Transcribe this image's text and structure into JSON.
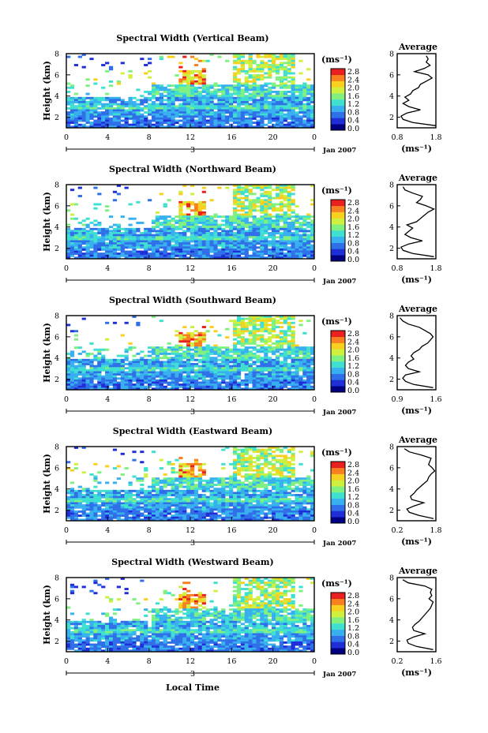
{
  "figure": {
    "colorbar_ticks": [
      "2.8",
      "2.4",
      "2.0",
      "1.6",
      "1.2",
      "0.8",
      "0.4",
      "0.0"
    ],
    "colorbar_unit": "(ms⁻¹)",
    "date_label": "Jan 2007",
    "day_label": "3",
    "xlabel_bottom": "Local Time",
    "profile_title": "Average",
    "profile_unit": "(ms⁻¹)",
    "colormap": [
      "#000080",
      "#1f2fd8",
      "#2f6fe8",
      "#38b0f0",
      "#40e0d0",
      "#80f080",
      "#d0f040",
      "#f8d020",
      "#f88020",
      "#e82020"
    ]
  },
  "chart_data": [
    {
      "type": "heatmap",
      "title": "Spectral Width (Vertical Beam)",
      "ylabel": "Height (km)",
      "x_ticks": [
        "0",
        "4",
        "8",
        "12",
        "16",
        "20",
        "0"
      ],
      "y_ticks": [
        "2",
        "4",
        "6",
        "8"
      ],
      "xlim": [
        0,
        24
      ],
      "ylim": [
        1,
        8
      ],
      "colorbar_range": [
        0.0,
        3.0
      ],
      "profile": {
        "title": "Average",
        "x_ticks": [
          "0.8",
          "1.8"
        ],
        "xlim": [
          0.8,
          1.8
        ],
        "y_ticks": [
          "2",
          "4",
          "6",
          "8"
        ],
        "ylim": [
          1,
          8
        ],
        "height_km": [
          1.2,
          1.5,
          1.8,
          2.1,
          2.4,
          2.7,
          3.0,
          3.3,
          3.6,
          3.9,
          4.2,
          4.5,
          4.8,
          5.1,
          5.4,
          5.7,
          6.0,
          6.3,
          6.6,
          6.9,
          7.2,
          7.5,
          7.8
        ],
        "avg_width": [
          1.8,
          1.2,
          0.95,
          0.9,
          1.05,
          1.4,
          1.1,
          0.95,
          1.1,
          1.0,
          1.15,
          1.2,
          1.35,
          1.4,
          1.55,
          1.7,
          1.6,
          1.25,
          1.5,
          1.65,
          1.55,
          1.6,
          1.55
        ]
      }
    },
    {
      "type": "heatmap",
      "title": "Spectral Width (Northward Beam)",
      "ylabel": "Height (km)",
      "x_ticks": [
        "0",
        "4",
        "8",
        "12",
        "16",
        "20",
        "0"
      ],
      "y_ticks": [
        "2",
        "4",
        "6",
        "8"
      ],
      "xlim": [
        0,
        24
      ],
      "ylim": [
        1,
        8
      ],
      "colorbar_range": [
        0.0,
        3.0
      ],
      "profile": {
        "title": "Average",
        "x_ticks": [
          "0.8",
          "1.8"
        ],
        "xlim": [
          0.8,
          1.8
        ],
        "y_ticks": [
          "2",
          "4",
          "6",
          "8"
        ],
        "ylim": [
          1,
          8
        ],
        "height_km": [
          1.2,
          1.5,
          1.8,
          2.1,
          2.4,
          2.7,
          3.0,
          3.3,
          3.6,
          3.9,
          4.2,
          4.5,
          4.8,
          5.1,
          5.4,
          5.7,
          6.0,
          6.3,
          6.6,
          6.9,
          7.2,
          7.5,
          7.8
        ],
        "avg_width": [
          1.75,
          1.2,
          0.95,
          0.9,
          1.1,
          1.45,
          1.15,
          1.0,
          1.1,
          1.2,
          1.05,
          1.3,
          1.4,
          1.5,
          1.6,
          1.75,
          1.55,
          1.3,
          1.4,
          1.45,
          1.2,
          1.0,
          0.95
        ]
      }
    },
    {
      "type": "heatmap",
      "title": "Spectral Width (Southward Beam)",
      "ylabel": "Height (km)",
      "x_ticks": [
        "0",
        "4",
        "8",
        "12",
        "16",
        "20",
        "0"
      ],
      "y_ticks": [
        "2",
        "4",
        "6",
        "8"
      ],
      "xlim": [
        0,
        24
      ],
      "ylim": [
        1,
        8
      ],
      "colorbar_range": [
        0.0,
        3.0
      ],
      "profile": {
        "title": "Average",
        "x_ticks": [
          "0.9",
          "1.6"
        ],
        "xlim": [
          0.9,
          1.6
        ],
        "y_ticks": [
          "2",
          "4",
          "6",
          "8"
        ],
        "ylim": [
          1,
          8
        ],
        "height_km": [
          1.2,
          1.5,
          1.8,
          2.1,
          2.4,
          2.7,
          3.0,
          3.3,
          3.6,
          3.9,
          4.2,
          4.5,
          4.8,
          5.1,
          5.4,
          5.7,
          6.0,
          6.3,
          6.6,
          6.9,
          7.2,
          7.5,
          7.8
        ],
        "avg_width": [
          1.55,
          1.2,
          1.05,
          1.0,
          1.05,
          1.3,
          1.1,
          1.05,
          1.1,
          1.2,
          1.15,
          1.2,
          1.3,
          1.35,
          1.45,
          1.5,
          1.55,
          1.5,
          1.4,
          1.3,
          1.1,
          1.0,
          0.95
        ]
      }
    },
    {
      "type": "heatmap",
      "title": "Spectral Width (Eastward Beam)",
      "ylabel": "Height (km)",
      "x_ticks": [
        "0",
        "4",
        "8",
        "12",
        "16",
        "20",
        "0"
      ],
      "y_ticks": [
        "2",
        "4",
        "6",
        "8"
      ],
      "xlim": [
        0,
        24
      ],
      "ylim": [
        1,
        8
      ],
      "colorbar_range": [
        0.0,
        3.0
      ],
      "profile": {
        "title": "Average",
        "x_ticks": [
          "0.2",
          "1.8"
        ],
        "xlim": [
          0.2,
          1.8
        ],
        "y_ticks": [
          "2",
          "4",
          "6",
          "8"
        ],
        "ylim": [
          1,
          8
        ],
        "height_km": [
          1.2,
          1.5,
          1.8,
          2.1,
          2.4,
          2.7,
          3.0,
          3.3,
          3.6,
          3.9,
          4.2,
          4.5,
          4.8,
          5.1,
          5.4,
          5.7,
          6.0,
          6.3,
          6.6,
          6.9,
          7.2,
          7.5,
          7.8
        ],
        "avg_width": [
          1.7,
          1.1,
          0.7,
          0.6,
          0.9,
          1.3,
          0.8,
          0.75,
          0.9,
          1.0,
          1.15,
          1.3,
          1.45,
          1.5,
          1.6,
          1.75,
          1.65,
          1.5,
          1.55,
          1.6,
          1.2,
          0.7,
          0.5
        ]
      }
    },
    {
      "type": "heatmap",
      "title": "Spectral Width (Westward Beam)",
      "ylabel": "Height (km)",
      "xlabel": "Local Time",
      "x_ticks": [
        "0",
        "4",
        "8",
        "12",
        "16",
        "20",
        "0"
      ],
      "y_ticks": [
        "2",
        "4",
        "6",
        "8"
      ],
      "xlim": [
        0,
        24
      ],
      "ylim": [
        1,
        8
      ],
      "colorbar_range": [
        0.0,
        3.0
      ],
      "profile": {
        "title": "Average",
        "x_ticks": [
          "0.2",
          "1.6"
        ],
        "xlim": [
          0.2,
          1.6
        ],
        "y_ticks": [
          "2",
          "4",
          "6",
          "8"
        ],
        "ylim": [
          1,
          8
        ],
        "height_km": [
          1.2,
          1.5,
          1.8,
          2.1,
          2.4,
          2.7,
          3.0,
          3.3,
          3.6,
          3.9,
          4.2,
          4.5,
          4.8,
          5.1,
          5.4,
          5.7,
          6.0,
          6.3,
          6.6,
          6.9,
          7.2,
          7.5,
          7.8
        ],
        "avg_width": [
          1.5,
          0.9,
          0.6,
          0.55,
          0.8,
          1.2,
          0.8,
          0.75,
          0.85,
          1.0,
          1.1,
          1.2,
          1.3,
          1.4,
          1.45,
          1.5,
          1.35,
          1.45,
          1.4,
          1.45,
          1.2,
          0.6,
          0.4
        ]
      }
    }
  ]
}
